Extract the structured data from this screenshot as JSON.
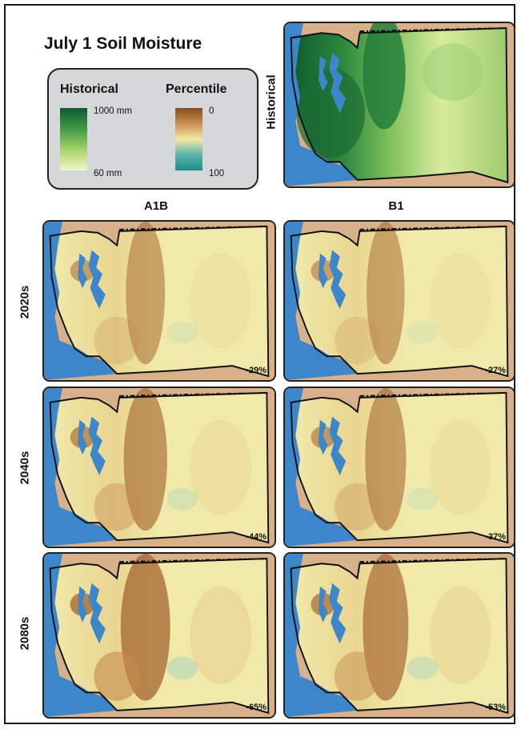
{
  "title": "July 1 Soil Moisture",
  "legend": {
    "historical": {
      "label": "Historical",
      "max_label": "1000 mm",
      "min_label": "60 mm",
      "colors": [
        "#0e5a2e",
        "#3f9a45",
        "#a8d26a",
        "#f4f6c8"
      ]
    },
    "percentile": {
      "label": "Percentile",
      "min_label": "0",
      "max_label": "100",
      "colors": [
        "#8a4a1f",
        "#c98f52",
        "#f1e8a8",
        "#5bb5a8",
        "#1b8c8c"
      ]
    }
  },
  "historical_row_label": "Historical",
  "columns": [
    "A1B",
    "B1"
  ],
  "rows": [
    "2020s",
    "2040s",
    "2080s"
  ],
  "panels": [
    {
      "row": "2020s",
      "column": "A1B",
      "change": "-29%"
    },
    {
      "row": "2020s",
      "column": "B1",
      "change": "-27%"
    },
    {
      "row": "2040s",
      "column": "A1B",
      "change": "-44%"
    },
    {
      "row": "2040s",
      "column": "B1",
      "change": "-37%"
    },
    {
      "row": "2080s",
      "column": "A1B",
      "change": "-65%"
    },
    {
      "row": "2080s",
      "column": "B1",
      "change": "-53%"
    }
  ],
  "colors": {
    "water": "#3d86c9",
    "neighbor_land": "#d8b18a",
    "dry_base": "#f1e9a9",
    "dry_ridge": "#a4642f",
    "wet_forest": "#1f7a3a",
    "wet_base": "#cfe59a"
  }
}
